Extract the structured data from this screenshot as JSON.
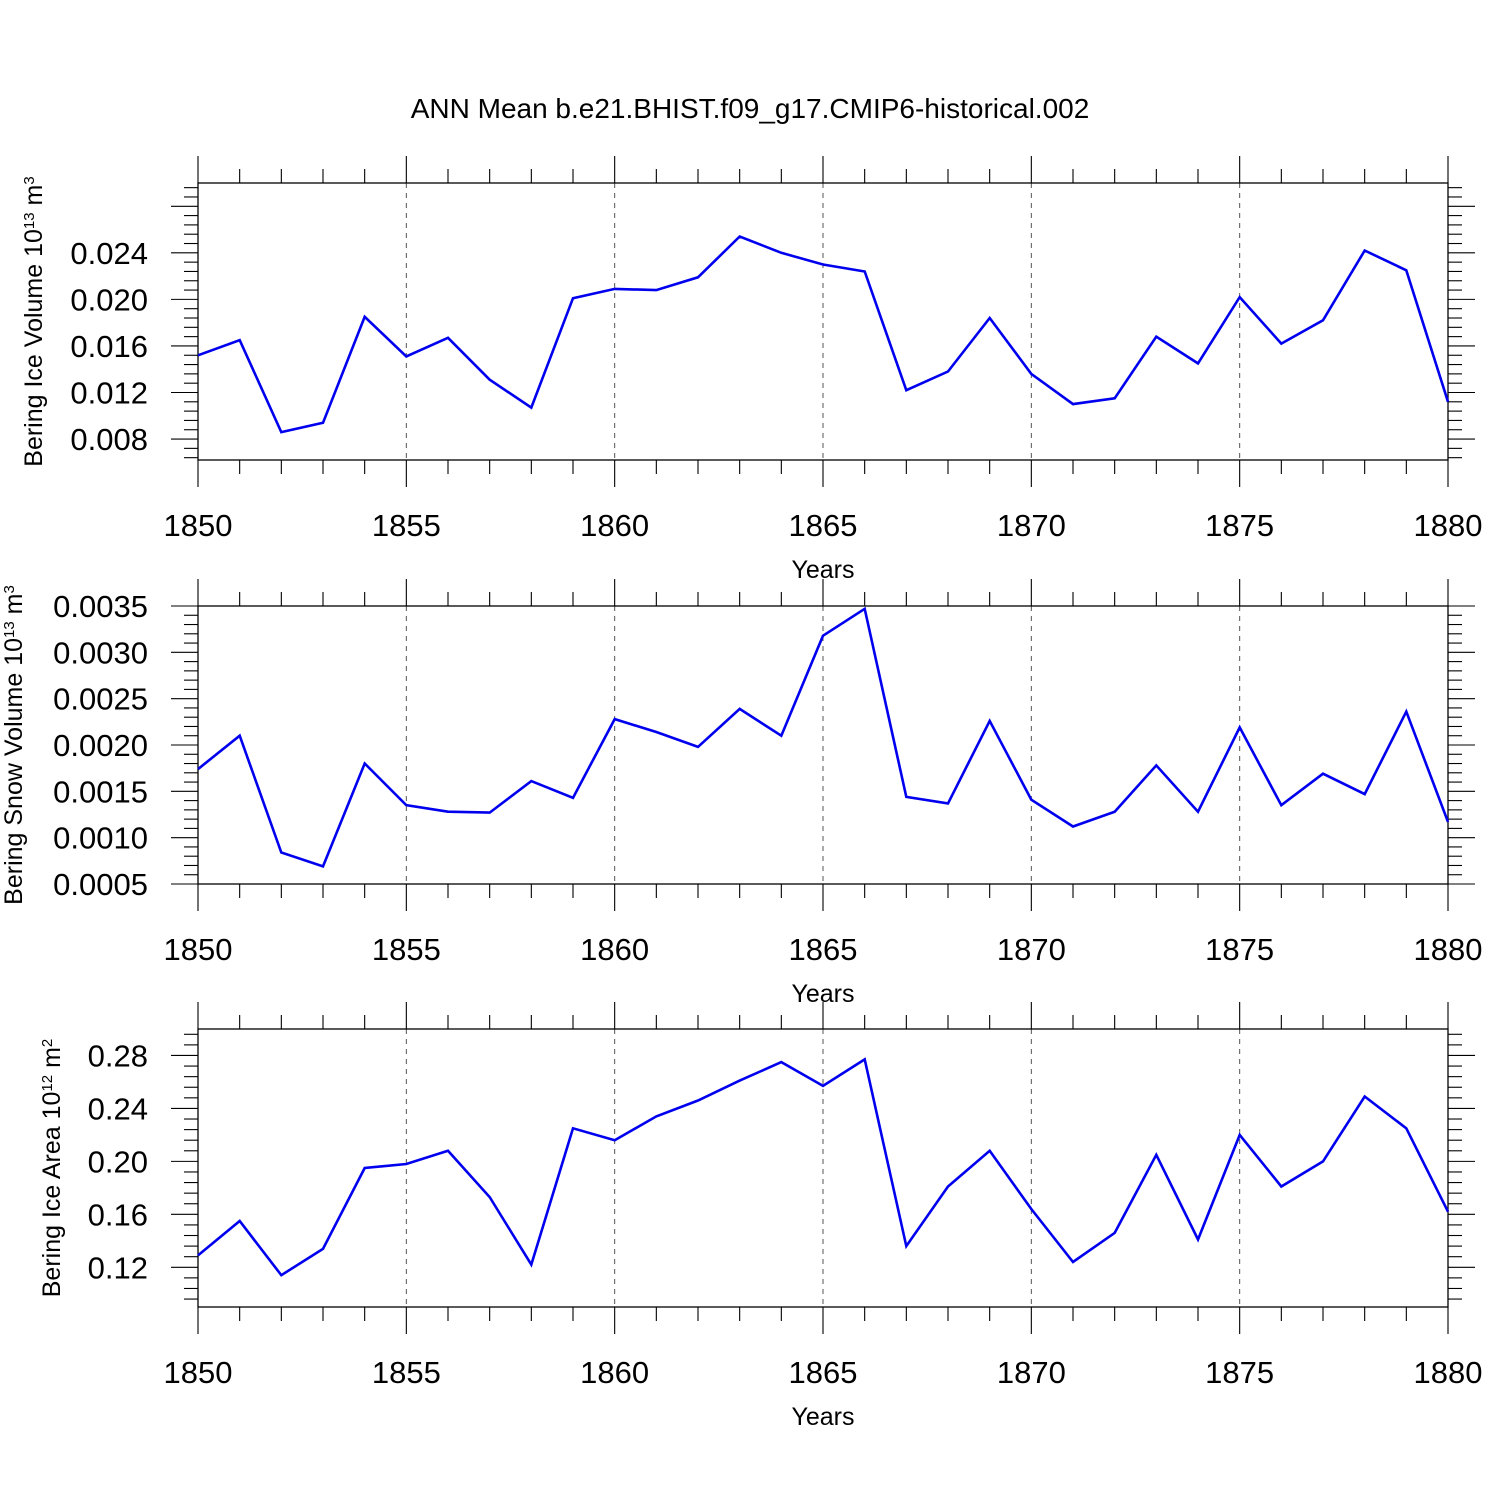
{
  "figure": {
    "title": "ANN Mean b.e21.BHIST.f09_g17.CMIP6-historical.002"
  },
  "chart_data": [
    {
      "type": "line",
      "ylabel": "Bering Ice Volume 10",
      "ylabel_sup": "13",
      "ylabel_unit": " m",
      "ylabel_unit_sup": "3",
      "xlabel": "Years",
      "xlim": [
        1850,
        1880
      ],
      "ylim": [
        0.0062,
        0.03
      ],
      "x_ticks": [
        1850,
        1855,
        1860,
        1865,
        1870,
        1875,
        1880
      ],
      "x_tick_labels": [
        "1850",
        "1855",
        "1860",
        "1865",
        "1870",
        "1875",
        "1880"
      ],
      "y_ticks": [
        0.008,
        0.012,
        0.016,
        0.02,
        0.024
      ],
      "y_tick_labels": [
        "0.008",
        "0.012",
        "0.016",
        "0.020",
        "0.024"
      ],
      "grid": "vertical-dashed",
      "color": "#0000ee",
      "x": [
        1850,
        1851,
        1852,
        1853,
        1854,
        1855,
        1856,
        1857,
        1858,
        1859,
        1860,
        1861,
        1862,
        1863,
        1864,
        1865,
        1866,
        1867,
        1868,
        1869,
        1870,
        1871,
        1872,
        1873,
        1874,
        1875,
        1876,
        1877,
        1878,
        1879,
        1880
      ],
      "y": [
        0.0152,
        0.0165,
        0.0086,
        0.0094,
        0.0185,
        0.0151,
        0.0167,
        0.0131,
        0.0107,
        0.0201,
        0.0209,
        0.0208,
        0.0219,
        0.0254,
        0.024,
        0.023,
        0.0224,
        0.0122,
        0.0138,
        0.0184,
        0.0136,
        0.011,
        0.0115,
        0.0168,
        0.0145,
        0.0202,
        0.0162,
        0.0182,
        0.0242,
        0.0225,
        0.0112
      ]
    },
    {
      "type": "line",
      "ylabel": "Bering Snow Volume 10",
      "ylabel_sup": "13",
      "ylabel_unit": " m",
      "ylabel_unit_sup": "3",
      "xlabel": "Years",
      "xlim": [
        1850,
        1880
      ],
      "ylim": [
        0.0005,
        0.0035
      ],
      "x_ticks": [
        1850,
        1855,
        1860,
        1865,
        1870,
        1875,
        1880
      ],
      "x_tick_labels": [
        "1850",
        "1855",
        "1860",
        "1865",
        "1870",
        "1875",
        "1880"
      ],
      "y_ticks": [
        0.0005,
        0.001,
        0.0015,
        0.002,
        0.0025,
        0.003,
        0.0035
      ],
      "y_tick_labels": [
        "0.0005",
        "0.0010",
        "0.0015",
        "0.0020",
        "0.0025",
        "0.0030",
        "0.0035"
      ],
      "grid": "vertical-dashed",
      "color": "#0000ee",
      "x": [
        1850,
        1851,
        1852,
        1853,
        1854,
        1855,
        1856,
        1857,
        1858,
        1859,
        1860,
        1861,
        1862,
        1863,
        1864,
        1865,
        1866,
        1867,
        1868,
        1869,
        1870,
        1871,
        1872,
        1873,
        1874,
        1875,
        1876,
        1877,
        1878,
        1879,
        1880
      ],
      "y": [
        0.00174,
        0.0021,
        0.00084,
        0.00069,
        0.0018,
        0.00135,
        0.00128,
        0.00127,
        0.00161,
        0.00143,
        0.00228,
        0.00214,
        0.00198,
        0.00239,
        0.0021,
        0.00318,
        0.00347,
        0.00144,
        0.00137,
        0.00226,
        0.00141,
        0.00112,
        0.00128,
        0.00178,
        0.00128,
        0.00219,
        0.00135,
        0.00169,
        0.00147,
        0.00236,
        0.00117
      ]
    },
    {
      "type": "line",
      "ylabel": "Bering Ice Area 10",
      "ylabel_sup": "12",
      "ylabel_unit": " m",
      "ylabel_unit_sup": "2",
      "xlabel": "Years",
      "xlim": [
        1850,
        1880
      ],
      "ylim": [
        0.09,
        0.3
      ],
      "x_ticks": [
        1850,
        1855,
        1860,
        1865,
        1870,
        1875,
        1880
      ],
      "x_tick_labels": [
        "1850",
        "1855",
        "1860",
        "1865",
        "1870",
        "1875",
        "1880"
      ],
      "y_ticks": [
        0.12,
        0.16,
        0.2,
        0.24,
        0.28
      ],
      "y_tick_labels": [
        "0.12",
        "0.16",
        "0.20",
        "0.24",
        "0.28"
      ],
      "grid": "vertical-dashed",
      "color": "#0000ee",
      "x": [
        1850,
        1851,
        1852,
        1853,
        1854,
        1855,
        1856,
        1857,
        1858,
        1859,
        1860,
        1861,
        1862,
        1863,
        1864,
        1865,
        1866,
        1867,
        1868,
        1869,
        1870,
        1871,
        1872,
        1873,
        1874,
        1875,
        1876,
        1877,
        1878,
        1879,
        1880
      ],
      "y": [
        0.129,
        0.155,
        0.114,
        0.134,
        0.195,
        0.198,
        0.208,
        0.173,
        0.122,
        0.225,
        0.216,
        0.234,
        0.246,
        0.261,
        0.275,
        0.257,
        0.277,
        0.136,
        0.181,
        0.208,
        0.164,
        0.124,
        0.146,
        0.205,
        0.141,
        0.22,
        0.181,
        0.2,
        0.249,
        0.225,
        0.162
      ]
    }
  ]
}
